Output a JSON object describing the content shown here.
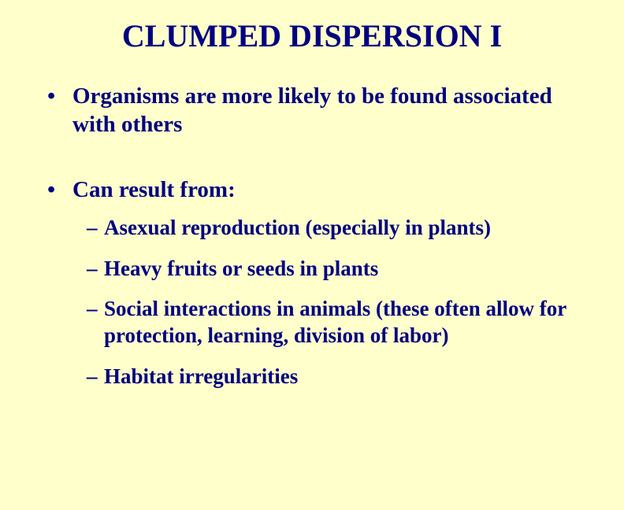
{
  "background_color": "#ffffcc",
  "text_color": "#000080",
  "font_family": "Times New Roman",
  "font_weight": "bold",
  "title": {
    "text": "CLUMPED DISPERSION  I",
    "fontsize": 40
  },
  "bullets": [
    {
      "text": "Organisms are more likely to be found associated with others",
      "fontsize": 29,
      "children": []
    },
    {
      "text": "Can result from:",
      "fontsize": 29,
      "children": [
        {
          "text": "Asexual reproduction (especially in plants)",
          "fontsize": 27
        },
        {
          "text": "Heavy fruits or seeds in plants",
          "fontsize": 27
        },
        {
          "text": "Social interactions in animals (these often allow for protection, learning, division of labor)",
          "fontsize": 27
        },
        {
          "text": "Habitat irregularities",
          "fontsize": 27
        }
      ]
    }
  ]
}
